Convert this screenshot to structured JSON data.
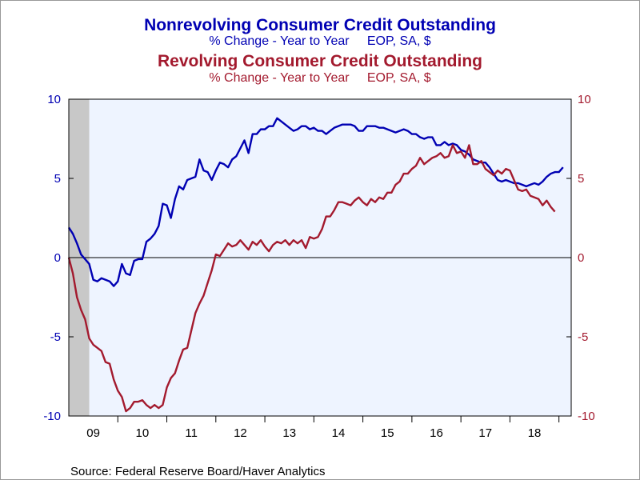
{
  "chart_data": {
    "type": "line",
    "titles": [
      {
        "title": "Nonrevolving Consumer Credit Outstanding",
        "subtitle": "% Change - Year to Year     EOP, SA, $",
        "color": "#0000b3"
      },
      {
        "title": "Revolving Consumer Credit Outstanding",
        "subtitle": "% Change - Year to Year     EOP, SA, $",
        "color": "#a31a2e"
      }
    ],
    "source": "Source:  Federal Reserve Board/Haver Analytics",
    "x_ticks": [
      "09",
      "10",
      "11",
      "12",
      "13",
      "14",
      "15",
      "16",
      "17",
      "18"
    ],
    "x_range": [
      "2009-01",
      "2019-04"
    ],
    "y_left": {
      "ticks": [
        "10",
        "5",
        "0",
        "-5",
        "-10"
      ],
      "ylim": [
        -10,
        10
      ]
    },
    "y_right": {
      "ticks": [
        "10",
        "5",
        "0",
        "-5",
        "-10"
      ],
      "ylim": [
        -10,
        10
      ]
    },
    "recession_shading": {
      "start": "2009-01",
      "end": "2009-06",
      "color": "#c8c8c8"
    },
    "plot_background": "#eef4ff",
    "zero_line": true,
    "series": [
      {
        "name": "Nonrevolving Consumer Credit Outstanding",
        "color": "#0000b3",
        "start": "2009-01",
        "values": [
          1.9,
          1.5,
          0.9,
          0.2,
          -0.1,
          -0.4,
          -1.4,
          -1.5,
          -1.3,
          -1.4,
          -1.5,
          -1.8,
          -1.5,
          -0.4,
          -1.0,
          -1.1,
          -0.2,
          -0.1,
          -0.1,
          1.0,
          1.2,
          1.5,
          2.0,
          3.4,
          3.3,
          2.5,
          3.7,
          4.5,
          4.3,
          4.9,
          5.0,
          5.1,
          6.2,
          5.5,
          5.4,
          4.9,
          5.5,
          6.0,
          5.9,
          5.7,
          6.2,
          6.4,
          6.9,
          7.4,
          6.6,
          7.8,
          7.8,
          8.1,
          8.1,
          8.3,
          8.3,
          8.8,
          8.6,
          8.4,
          8.2,
          8.0,
          8.1,
          8.3,
          8.3,
          8.1,
          8.2,
          8.0,
          8.0,
          7.8,
          8.0,
          8.2,
          8.3,
          8.4,
          8.4,
          8.4,
          8.3,
          8.0,
          8.0,
          8.3,
          8.3,
          8.3,
          8.2,
          8.2,
          8.1,
          8.0,
          7.9,
          8.0,
          8.1,
          8.0,
          7.8,
          7.8,
          7.6,
          7.5,
          7.6,
          7.6,
          7.1,
          7.1,
          7.3,
          7.1,
          7.2,
          7.1,
          6.8,
          6.7,
          6.5,
          6.2,
          6.1,
          6.0,
          6.0,
          5.7,
          5.3,
          4.9,
          4.8,
          4.9,
          4.8,
          4.7,
          4.7,
          4.6,
          4.5,
          4.6,
          4.7,
          4.6,
          4.8,
          5.1,
          5.3,
          5.4,
          5.4,
          5.7
        ]
      },
      {
        "name": "Revolving Consumer Credit Outstanding",
        "color": "#a31a2e",
        "start": "2009-01",
        "values": [
          0.0,
          -1.0,
          -2.5,
          -3.3,
          -3.9,
          -5.1,
          -5.5,
          -5.7,
          -5.9,
          -6.6,
          -6.7,
          -7.7,
          -8.4,
          -8.8,
          -9.7,
          -9.5,
          -9.1,
          -9.1,
          -9.0,
          -9.3,
          -9.5,
          -9.3,
          -9.5,
          -9.3,
          -8.2,
          -7.6,
          -7.3,
          -6.5,
          -5.8,
          -5.7,
          -4.6,
          -3.5,
          -2.9,
          -2.4,
          -1.6,
          -0.8,
          0.2,
          0.1,
          0.5,
          0.9,
          0.7,
          0.8,
          1.1,
          0.8,
          0.5,
          1.0,
          0.8,
          1.1,
          0.7,
          0.4,
          0.8,
          1.0,
          0.9,
          1.1,
          0.8,
          1.1,
          0.9,
          1.1,
          0.6,
          1.3,
          1.2,
          1.3,
          1.8,
          2.6,
          2.6,
          3.0,
          3.5,
          3.5,
          3.4,
          3.3,
          3.6,
          3.8,
          3.5,
          3.3,
          3.7,
          3.5,
          3.8,
          3.7,
          4.1,
          4.1,
          4.6,
          4.8,
          5.3,
          5.3,
          5.6,
          5.8,
          6.3,
          5.9,
          6.1,
          6.3,
          6.4,
          6.6,
          6.3,
          6.4,
          7.1,
          6.6,
          6.7,
          6.3,
          7.1,
          5.9,
          5.9,
          6.1,
          5.6,
          5.4,
          5.2,
          5.5,
          5.3,
          5.6,
          5.5,
          4.9,
          4.3,
          4.2,
          4.3,
          3.9,
          3.8,
          3.7,
          3.3,
          3.6,
          3.2,
          2.9
        ]
      }
    ]
  }
}
